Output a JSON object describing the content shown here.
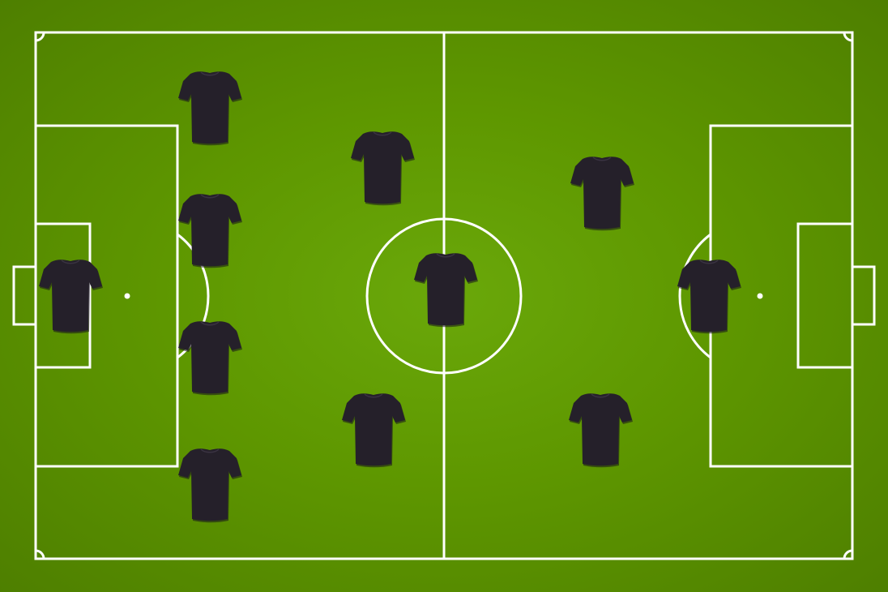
{
  "pitch": {
    "grass_color": "#5e9700",
    "line_color": "#ffffff",
    "jersey_color": "#25202a",
    "formation": "4-4-2",
    "players": [
      {
        "role": "goalkeeper"
      },
      {
        "role": "defender"
      },
      {
        "role": "defender"
      },
      {
        "role": "defender"
      },
      {
        "role": "defender"
      },
      {
        "role": "midfielder"
      },
      {
        "role": "midfielder"
      },
      {
        "role": "midfielder"
      },
      {
        "role": "midfielder"
      },
      {
        "role": "forward"
      },
      {
        "role": "forward"
      }
    ]
  }
}
